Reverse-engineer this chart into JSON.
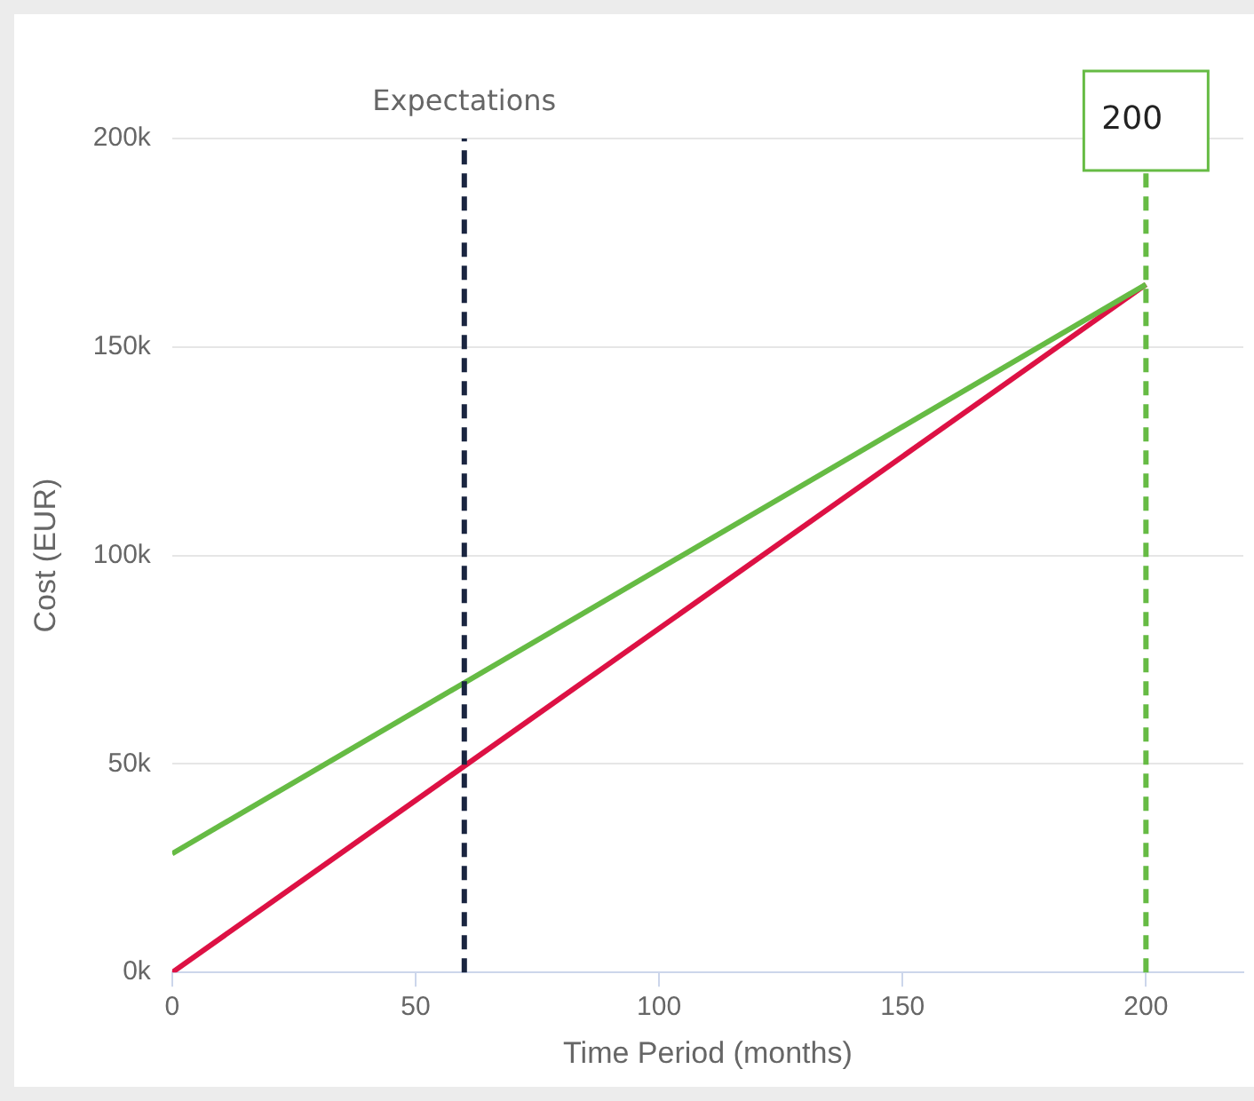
{
  "chart_data": {
    "type": "line",
    "xlabel": "Time Period (months)",
    "ylabel": "Cost (EUR)",
    "xlim": [
      0,
      220
    ],
    "xticks": [
      0,
      50,
      100,
      150,
      200
    ],
    "ylim": [
      0,
      200000
    ],
    "yticks": [
      {
        "value": 0,
        "label": "0k"
      },
      {
        "value": 50000,
        "label": "50k"
      },
      {
        "value": 100000,
        "label": "100k"
      },
      {
        "value": 150000,
        "label": "150k"
      },
      {
        "value": 200000,
        "label": "200k"
      }
    ],
    "grid": "y",
    "legend": false,
    "marker": "none",
    "line_style": "solid",
    "x": [
      0,
      200
    ],
    "series": [
      {
        "color": "#66bb44",
        "values": [
          28500,
          165000
        ]
      },
      {
        "color": "#dd1144",
        "values": [
          0,
          165000
        ]
      }
    ],
    "ref_lines": [
      {
        "axis": "x",
        "value": 60,
        "label": "Expectations",
        "color": "#1a2540",
        "line_style": "dashed"
      },
      {
        "axis": "x",
        "value": 200,
        "label": "200",
        "color": "#66bb44",
        "line_style": "dashed"
      }
    ]
  }
}
